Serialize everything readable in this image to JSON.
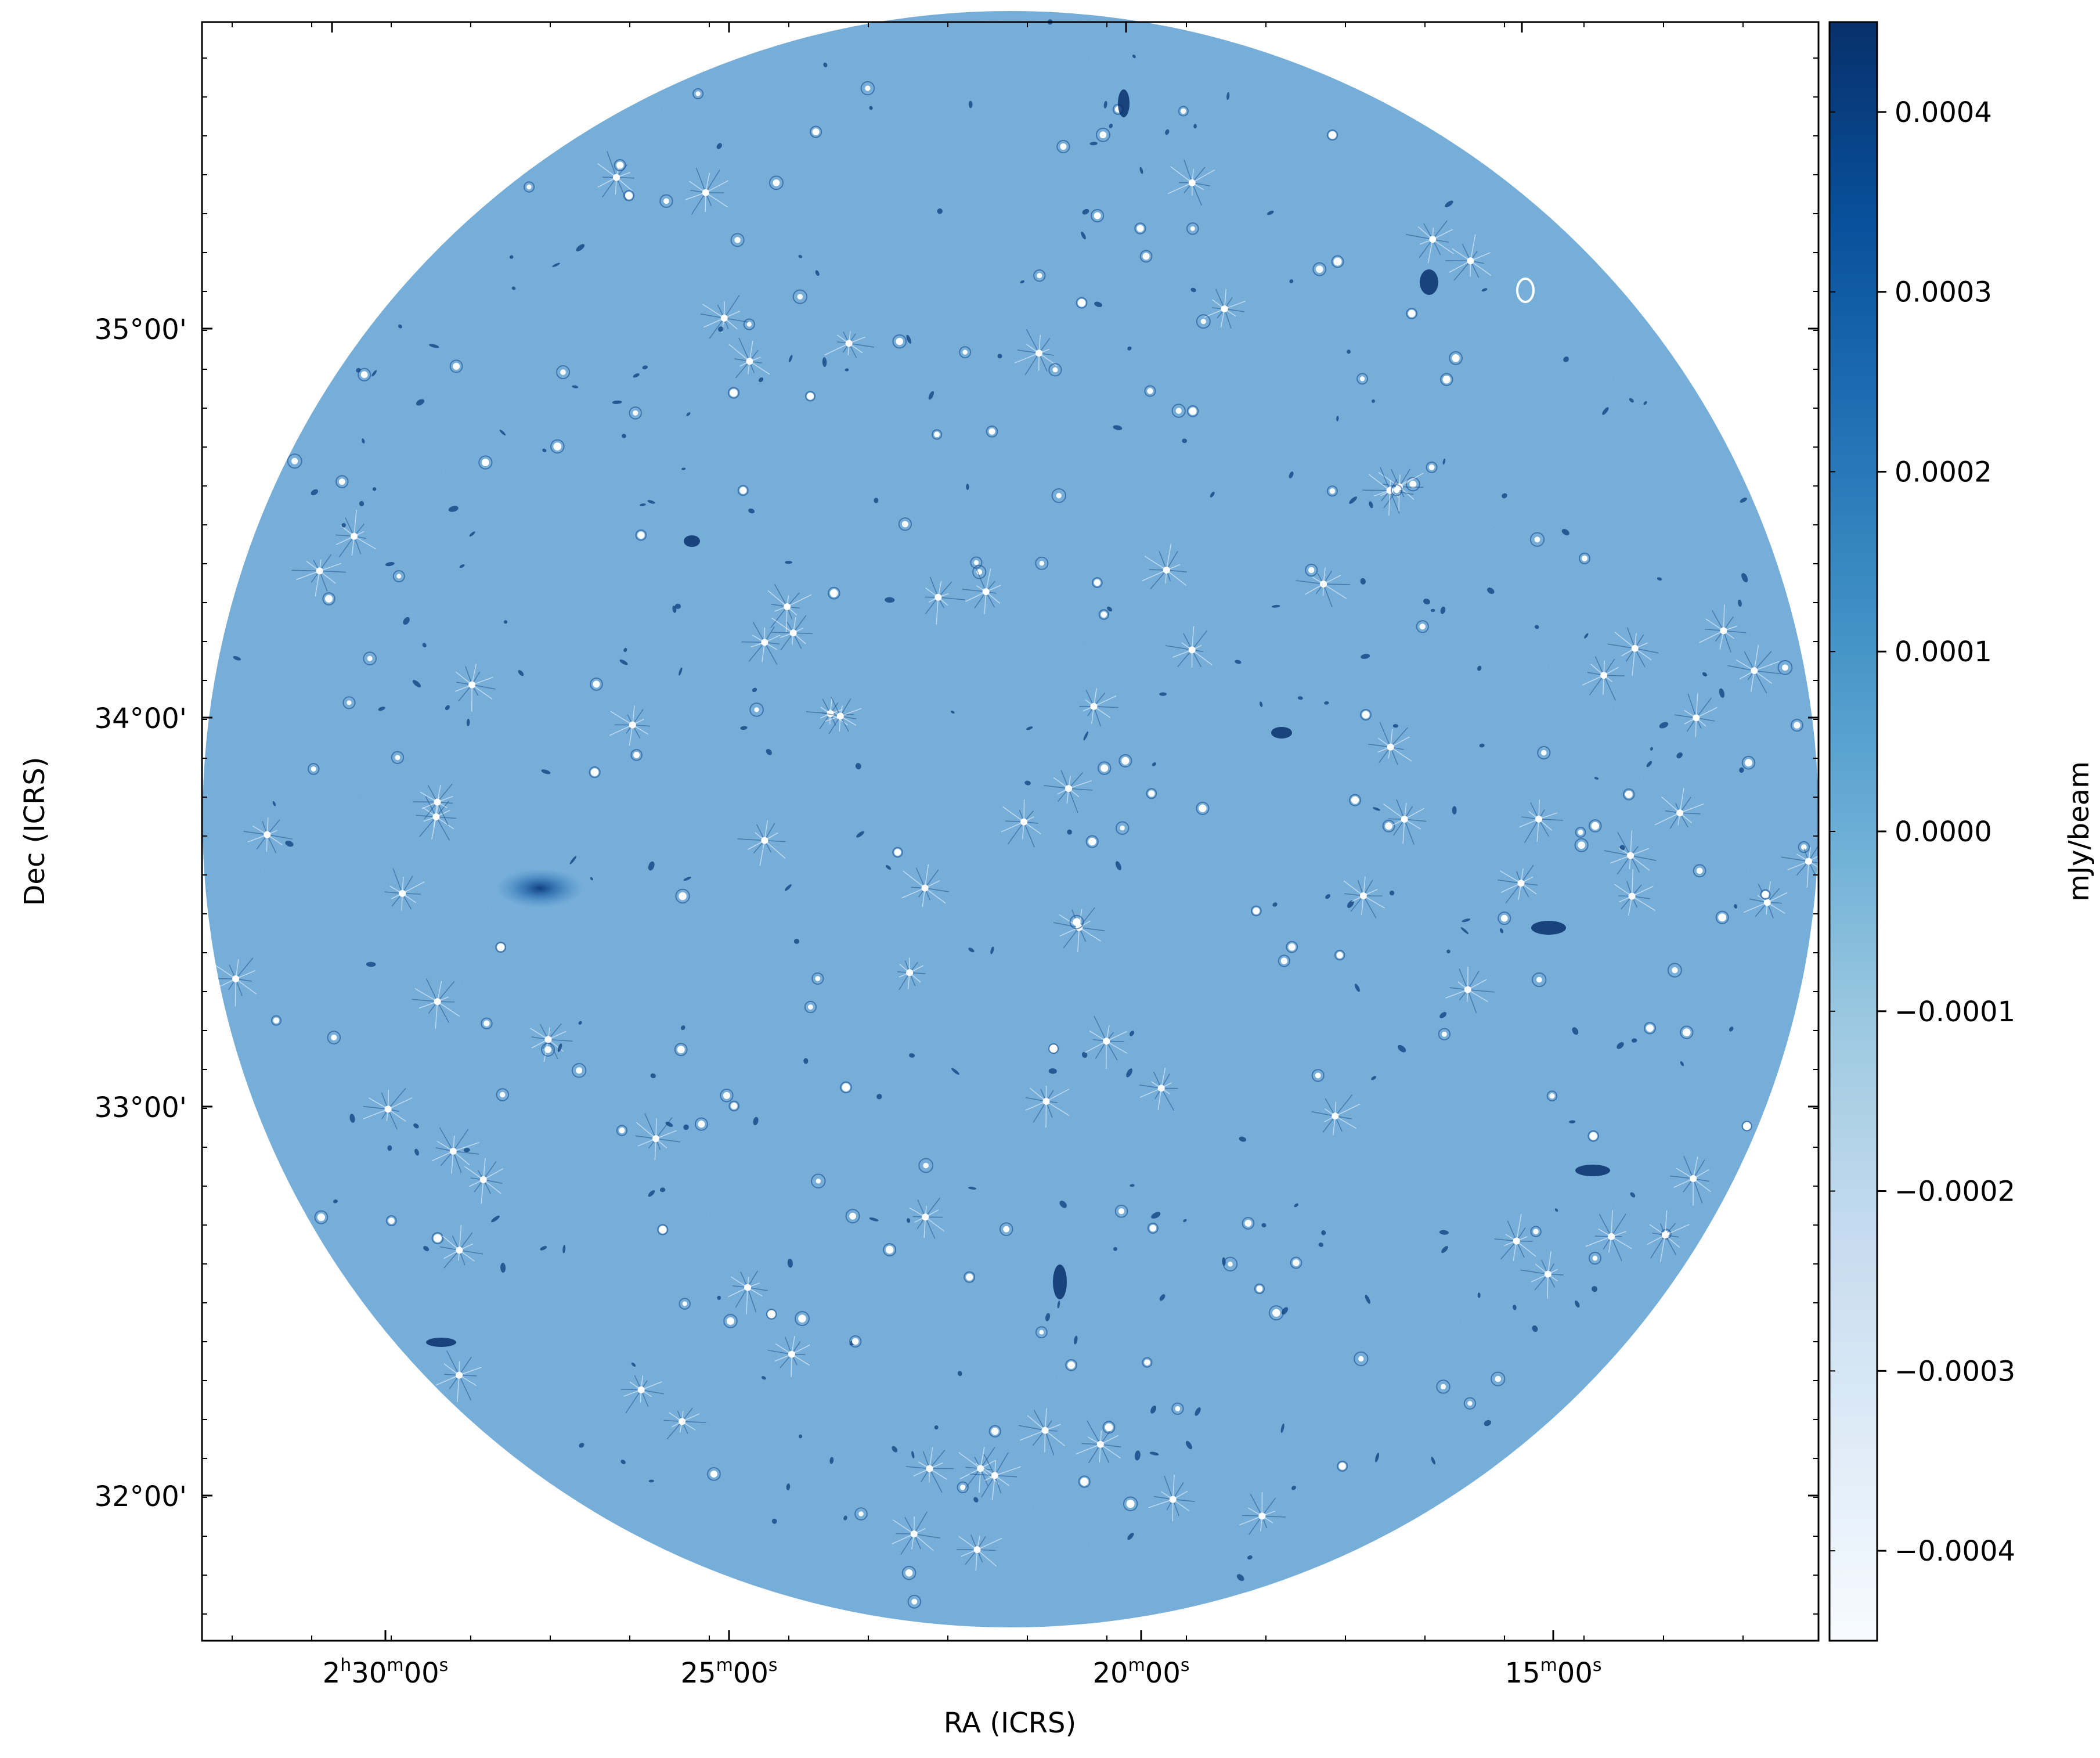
{
  "figure": {
    "xlabel": "RA (ICRS)",
    "ylabel": "Dec (ICRS)",
    "colorbar_label": "mJy/beam",
    "colormap": "Blues",
    "background_color": "#6aa6d3"
  },
  "ra_ticks": [
    {
      "h": "2",
      "m": "30",
      "s": "00",
      "show_hours": true
    },
    {
      "h": "",
      "m": "25",
      "s": "00",
      "show_hours": false
    },
    {
      "h": "",
      "m": "20",
      "s": "00",
      "show_hours": false
    },
    {
      "h": "",
      "m": "15",
      "s": "00",
      "show_hours": false
    }
  ],
  "dec_ticks": [
    {
      "label": "35°00'",
      "value": 35
    },
    {
      "label": "34°00'",
      "value": 34
    },
    {
      "label": "33°00'",
      "value": 33
    },
    {
      "label": "32°00'",
      "value": 32
    }
  ],
  "colorbar": {
    "min": -0.00045,
    "max": 0.00045,
    "ticks": [
      {
        "label": "0.0004",
        "value": 0.0004
      },
      {
        "label": "0.0003",
        "value": 0.0003
      },
      {
        "label": "0.0002",
        "value": 0.0002
      },
      {
        "label": "0.0001",
        "value": 0.0001
      },
      {
        "label": "0.0000",
        "value": 0.0
      },
      {
        "label": "−0.0001",
        "value": -0.0001
      },
      {
        "label": "−0.0002",
        "value": -0.0002
      },
      {
        "label": "−0.0003",
        "value": -0.0003
      },
      {
        "label": "−0.0004",
        "value": -0.0004
      }
    ],
    "colors": [
      "#f7fbff",
      "#deebf7",
      "#c6dbef",
      "#9ecae1",
      "#6baed6",
      "#4292c6",
      "#2171b5",
      "#08519c",
      "#08306b"
    ]
  }
}
